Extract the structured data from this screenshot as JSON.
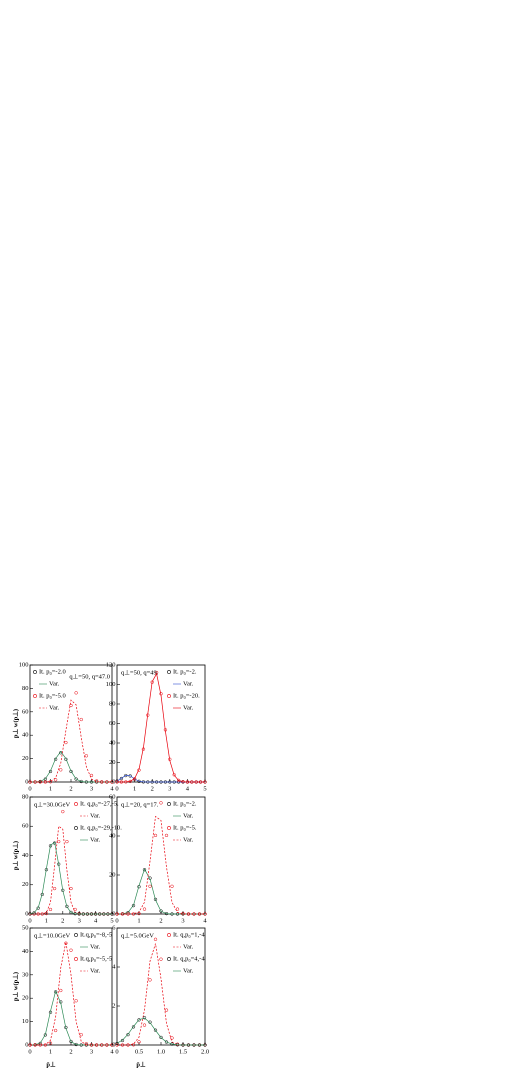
{
  "chart_data": [
    {
      "type": "line",
      "ylabel": "p⊥ w(p⊥)",
      "annotation": "q⊥=50, q=47.0",
      "legend": "upper left",
      "xlim": [
        0,
        4
      ],
      "xticks": [
        0,
        1,
        2,
        3,
        4
      ],
      "ylim": [
        0,
        100
      ],
      "yticks": [
        0,
        20,
        40,
        60,
        80,
        100
      ],
      "x": [
        0,
        0.25,
        0.5,
        0.75,
        1,
        1.25,
        1.5,
        1.75,
        2,
        2.25,
        2.5,
        2.75,
        3,
        3.25,
        3.5,
        3.75,
        4
      ],
      "series": [
        {
          "name": "It. p₀=-2.0",
          "color": "#000000",
          "style": "circle",
          "values": [
            0,
            0,
            0.4,
            2.5,
            9,
            19.4,
            25,
            19.4,
            9,
            2.5,
            0.4,
            0,
            0,
            0,
            0,
            0,
            0
          ]
        },
        {
          "name": "Var.",
          "color": "#2e8b57",
          "style": "line",
          "values": [
            0,
            0,
            0.5,
            2.7,
            9.5,
            20,
            26,
            20,
            9.3,
            2.5,
            0.4,
            0,
            0,
            0,
            0,
            0,
            0
          ]
        },
        {
          "name": "It. p₀=-5.0",
          "color": "#e8000b",
          "style": "circle",
          "values": [
            0,
            0,
            0,
            0,
            0.2,
            1.9,
            10.4,
            33.7,
            65.4,
            76.2,
            53.4,
            22.4,
            5.6,
            0.9,
            0.1,
            0,
            0
          ]
        },
        {
          "name": "Var.",
          "color": "#e8000b",
          "style": "dashed",
          "values": [
            0,
            0,
            0,
            0,
            0.5,
            3.5,
            16,
            44,
            70,
            66,
            38,
            13,
            2.5,
            0.3,
            0,
            0,
            0
          ]
        }
      ]
    },
    {
      "type": "line",
      "annotation": "q⊥=50, q=49.",
      "legend": "upper right",
      "xlim": [
        0,
        5
      ],
      "xticks": [
        0,
        1,
        2,
        3,
        4,
        5
      ],
      "ylim": [
        0,
        120
      ],
      "yticks": [
        0,
        20,
        40,
        60,
        80,
        100,
        120
      ],
      "x": [
        0,
        0.25,
        0.5,
        0.75,
        1,
        1.25,
        1.5,
        1.75,
        2,
        2.25,
        2.5,
        2.75,
        3,
        3.25,
        3.5,
        3.75,
        4,
        4.25,
        4.5,
        4.75,
        5
      ],
      "series": [
        {
          "name": "It. p₀=-2.",
          "color": "#000000",
          "style": "circle",
          "values": [
            0.9,
            3.6,
            6.6,
            6.2,
            2.9,
            0.7,
            0.1,
            0,
            0,
            0,
            0,
            0,
            0,
            0,
            0,
            0,
            0,
            0,
            0,
            0,
            0
          ]
        },
        {
          "name": "Var.",
          "color": "#3050d0",
          "style": "line",
          "values": [
            1,
            3.8,
            6.8,
            6.4,
            3,
            0.8,
            0.1,
            0,
            0,
            0,
            0,
            0,
            0,
            0,
            0,
            0,
            0,
            0,
            0,
            0,
            0
          ]
        },
        {
          "name": "It. p₀=-20.",
          "color": "#e8000b",
          "style": "circle",
          "values": [
            0,
            0,
            0.1,
            0.6,
            3.2,
            12.2,
            33.7,
            68.6,
            102.4,
            112.3,
            90.5,
            53.5,
            23.3,
            7.4,
            1.7,
            0.3,
            0,
            0,
            0,
            0,
            0
          ]
        },
        {
          "name": "Var.",
          "color": "#e8000b",
          "style": "line",
          "values": [
            0,
            0,
            0.1,
            0.7,
            3.5,
            13,
            35,
            70,
            103,
            111,
            89,
            52,
            22,
            7,
            1.6,
            0.3,
            0,
            0,
            0,
            0,
            0
          ]
        }
      ]
    },
    {
      "type": "line",
      "ylabel": "p⊥ w(p⊥)",
      "annotation": "q⊥=30.0GeV",
      "legend": "upper right",
      "xlim": [
        0,
        5
      ],
      "xticks": [
        0,
        1,
        2,
        3,
        4,
        5
      ],
      "ylim": [
        0,
        80
      ],
      "yticks": [
        0,
        20,
        40,
        60,
        80
      ],
      "x": [
        0,
        0.25,
        0.5,
        0.75,
        1,
        1.25,
        1.5,
        1.75,
        2,
        2.25,
        2.5,
        2.75,
        3,
        3.25,
        3.5,
        3.75,
        4,
        4.25,
        4.5,
        4.75,
        5
      ],
      "series": [
        {
          "name": "It. q,p₀=-27,-5.",
          "color": "#e8000b",
          "style": "circle",
          "values": [
            0,
            0,
            0,
            0,
            0.3,
            3.1,
            17.4,
            49.5,
            70,
            49.5,
            17.4,
            3.1,
            0.3,
            0,
            0,
            0,
            0,
            0,
            0,
            0,
            0
          ]
        },
        {
          "name": "Var.",
          "color": "#e8000b",
          "style": "dashed",
          "values": [
            0,
            0,
            0,
            0.1,
            1,
            8,
            33,
            60,
            58,
            30,
            8,
            1,
            0.1,
            0,
            0,
            0,
            0,
            0,
            0,
            0,
            0
          ]
        },
        {
          "name": "It. q,p₀=-29,-10.",
          "color": "#000000",
          "style": "circle",
          "values": [
            0.1,
            0.8,
            4,
            13.4,
            30.3,
            46.6,
            48.5,
            34.1,
            16.2,
            5.2,
            1.1,
            0.2,
            0,
            0,
            0,
            0,
            0,
            0,
            0,
            0,
            0
          ]
        },
        {
          "name": "Var.",
          "color": "#2e8b57",
          "style": "line",
          "values": [
            0.1,
            0.9,
            4.3,
            14,
            31,
            47,
            49,
            34,
            16,
            5,
            1,
            0.2,
            0,
            0,
            0,
            0,
            0,
            0,
            0,
            0,
            0
          ]
        }
      ]
    },
    {
      "type": "line",
      "annotation": "q⊥=20, q=17.",
      "legend": "upper right",
      "xlim": [
        0,
        4
      ],
      "xticks": [
        0,
        1,
        2,
        3,
        4
      ],
      "ylim": [
        0,
        60
      ],
      "yticks": [
        0,
        20,
        40,
        60
      ],
      "x": [
        0,
        0.25,
        0.5,
        0.75,
        1,
        1.25,
        1.5,
        1.75,
        2,
        2.25,
        2.5,
        2.75,
        3,
        3.25,
        3.5,
        3.75,
        4
      ],
      "series": [
        {
          "name": "It. p₀=-2.",
          "color": "#000000",
          "style": "circle",
          "values": [
            0,
            0.1,
            0.7,
            4.3,
            14,
            22.7,
            18.4,
            7.5,
            1.5,
            0.2,
            0,
            0,
            0,
            0,
            0,
            0,
            0
          ]
        },
        {
          "name": "Var.",
          "color": "#2e8b57",
          "style": "line",
          "values": [
            0,
            0.1,
            0.8,
            4.5,
            14.5,
            23,
            18,
            7.2,
            1.4,
            0.2,
            0,
            0,
            0,
            0,
            0,
            0,
            0
          ]
        },
        {
          "name": "It. p₀=-5.",
          "color": "#e8000b",
          "style": "circle",
          "values": [
            0,
            0,
            0,
            0,
            0.2,
            2.5,
            14.2,
            40.3,
            57,
            40.3,
            14.2,
            2.5,
            0.2,
            0,
            0,
            0,
            0
          ]
        },
        {
          "name": "Var.",
          "color": "#e8000b",
          "style": "dashed",
          "values": [
            0,
            0,
            0,
            0.1,
            1,
            6,
            27,
            50,
            48,
            24,
            6,
            0.8,
            0.1,
            0,
            0,
            0,
            0
          ]
        }
      ]
    },
    {
      "type": "line",
      "ylabel": "p⊥ w(p⊥)",
      "xlabel": "p̄⊥",
      "annotation": "q⊥=10.0GeV",
      "legend": "upper right",
      "xlim": [
        0,
        4
      ],
      "xticks": [
        0,
        1,
        2,
        3,
        4
      ],
      "ylim": [
        0,
        50
      ],
      "yticks": [
        0,
        10,
        20,
        30,
        40,
        50
      ],
      "x": [
        0,
        0.25,
        0.5,
        0.75,
        1,
        1.25,
        1.5,
        1.75,
        2,
        2.25,
        2.5,
        2.75,
        3,
        3.25,
        3.5,
        3.75,
        4
      ],
      "series": [
        {
          "name": "It.q,p₀=-8,-5",
          "color": "#000000",
          "style": "circle",
          "values": [
            0,
            0.1,
            0.7,
            4.3,
            14,
            22.7,
            18.4,
            7.5,
            1.5,
            0.2,
            0,
            0,
            0,
            0,
            0,
            0,
            0
          ]
        },
        {
          "name": "Var.",
          "color": "#2e8b57",
          "style": "line",
          "values": [
            0,
            0.1,
            0.8,
            4.5,
            14.5,
            23,
            18,
            7.2,
            1.4,
            0.2,
            0,
            0,
            0,
            0,
            0,
            0,
            0
          ]
        },
        {
          "name": "It.q,p₀=-5,-5",
          "color": "#e8000b",
          "style": "circle",
          "values": [
            0,
            0,
            0,
            0,
            0.8,
            6.2,
            23.3,
            43.5,
            40.5,
            18.9,
            4.4,
            0.5,
            0,
            0,
            0,
            0,
            0
          ]
        },
        {
          "name": "Var.",
          "color": "#e8000b",
          "style": "dashed",
          "values": [
            0,
            0,
            0,
            0.1,
            2,
            12,
            33,
            44,
            30,
            10,
            1.5,
            0.1,
            0,
            0,
            0,
            0,
            0
          ]
        }
      ]
    },
    {
      "type": "line",
      "xlabel": "p̄⊥",
      "annotation": "q⊥=5.0GeV",
      "legend": "upper right",
      "xlim": [
        0,
        2
      ],
      "xticks": [
        0,
        0.5,
        {
          "value": 1,
          "label": "1.0"
        },
        1.5,
        {
          "value": 2,
          "label": "2.0"
        }
      ],
      "ylim": [
        0,
        6
      ],
      "yticks": [
        0,
        2,
        4,
        6
      ],
      "x": [
        0,
        0.125,
        0.25,
        0.375,
        0.5,
        0.625,
        0.75,
        0.875,
        1,
        1.125,
        1.25,
        1.375,
        1.5,
        1.625,
        1.75,
        1.875,
        2
      ],
      "series": [
        {
          "name": "It. q,p₀=1,-4",
          "color": "#e8000b",
          "style": "circle",
          "values": [
            0,
            0,
            0,
            0.01,
            0.16,
            1.02,
            3.34,
            5.42,
            4.4,
            1.79,
            0.36,
            0.04,
            0,
            0,
            0,
            0,
            0
          ]
        },
        {
          "name": "Var.",
          "color": "#e8000b",
          "style": "dashed",
          "values": [
            0,
            0,
            0,
            0.05,
            0.4,
            1.8,
            4.3,
            5.2,
            3.4,
            1.1,
            0.15,
            0.01,
            0,
            0,
            0,
            0,
            0
          ]
        },
        {
          "name": "It. q,p₀=4,-4",
          "color": "#000000",
          "style": "circle",
          "values": [
            0.08,
            0.23,
            0.53,
            0.93,
            1.29,
            1.4,
            1.17,
            0.76,
            0.39,
            0.15,
            0.05,
            0.01,
            0,
            0,
            0,
            0,
            0
          ]
        },
        {
          "name": "Var.",
          "color": "#2e8b57",
          "style": "line",
          "values": [
            0.09,
            0.25,
            0.55,
            0.95,
            1.3,
            1.38,
            1.15,
            0.75,
            0.38,
            0.15,
            0.05,
            0.01,
            0,
            0,
            0,
            0,
            0
          ]
        }
      ]
    }
  ]
}
